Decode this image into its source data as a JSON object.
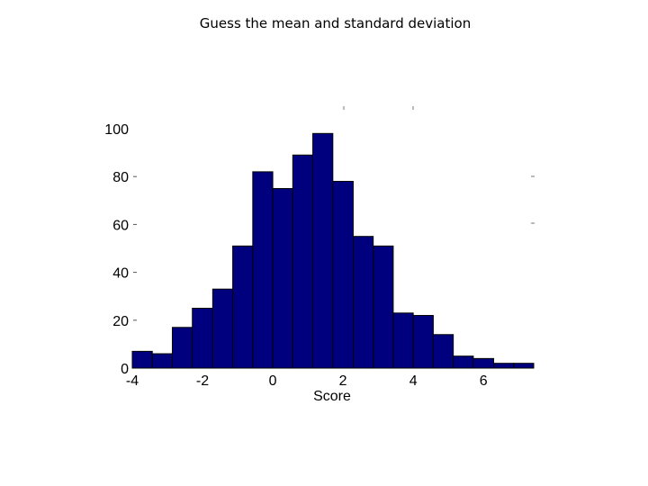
{
  "slide": {
    "title": "Guess the mean and standard deviation"
  },
  "chart_data": {
    "type": "bar",
    "bin_edges": [
      -4.0,
      -3.43,
      -2.86,
      -2.29,
      -1.71,
      -1.14,
      -0.57,
      0.0,
      0.57,
      1.14,
      1.71,
      2.29,
      2.86,
      3.43,
      4.0,
      4.57,
      5.14,
      5.71,
      6.29,
      6.86,
      7.43
    ],
    "values": [
      7,
      6,
      17,
      25,
      33,
      51,
      82,
      75,
      89,
      98,
      78,
      55,
      51,
      23,
      22,
      14,
      5,
      4,
      2,
      2
    ],
    "title": "",
    "xlabel": "Score",
    "ylabel": "",
    "xlim": [
      -4.0,
      7.43
    ],
    "ylim": [
      0,
      100
    ],
    "xticks": [
      -4,
      -2,
      0,
      2,
      4,
      6
    ],
    "xtick_labels": [
      "-4",
      "-2",
      "0",
      "2",
      "4",
      "6"
    ],
    "yticks": [
      0,
      20,
      40,
      60,
      80,
      100
    ],
    "ytick_labels": [
      "0",
      "20",
      "40",
      "60",
      "80",
      "100"
    ],
    "grid": false,
    "bar_color": "#00007f",
    "edge_color": "#000000"
  }
}
